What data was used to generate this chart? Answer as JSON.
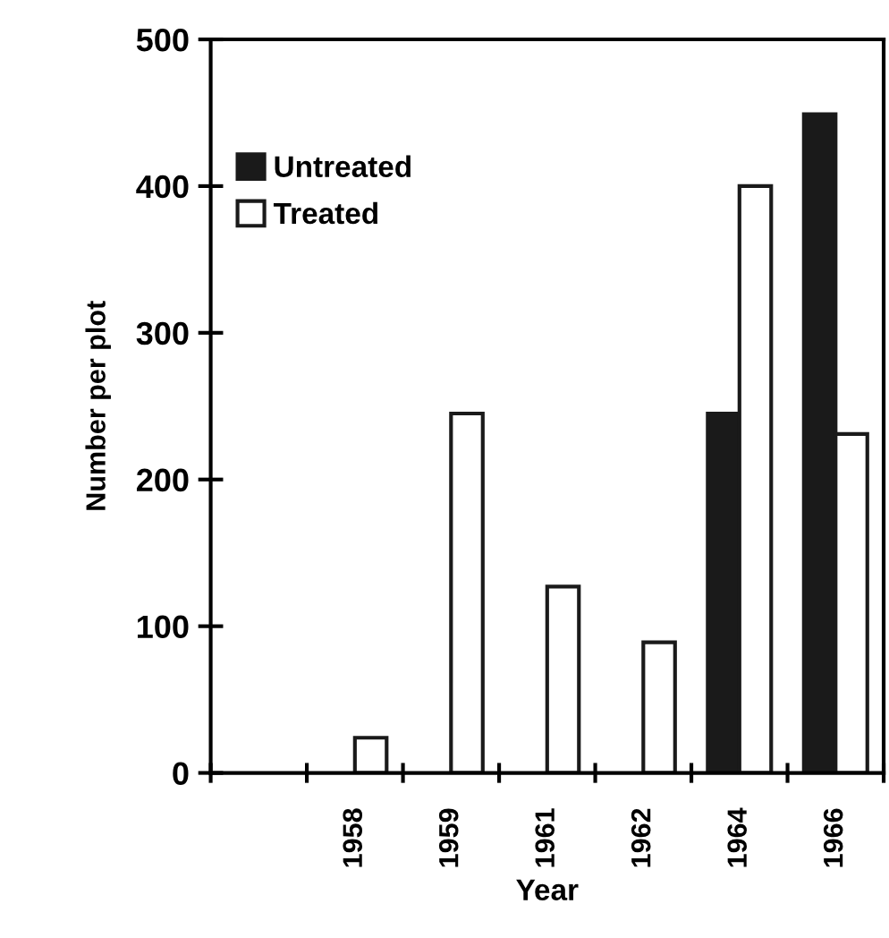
{
  "chart_data": {
    "type": "bar",
    "xlabel": "Year",
    "ylabel": "Number per plot",
    "categories": [
      null,
      "1958",
      "1959",
      "1961",
      "1962",
      "1964",
      "1966"
    ],
    "series": [
      {
        "name": "Untreated",
        "color": "#1a1a1a",
        "values": [
          null,
          null,
          null,
          null,
          null,
          245,
          449
        ]
      },
      {
        "name": "Treated",
        "color": "#ffffff",
        "values": [
          null,
          24,
          245,
          127,
          89,
          400,
          231
        ]
      }
    ],
    "ylim": [
      0,
      500
    ],
    "yticks": [
      0,
      100,
      200,
      300,
      400,
      500
    ],
    "grid": false,
    "legend": "top left"
  }
}
